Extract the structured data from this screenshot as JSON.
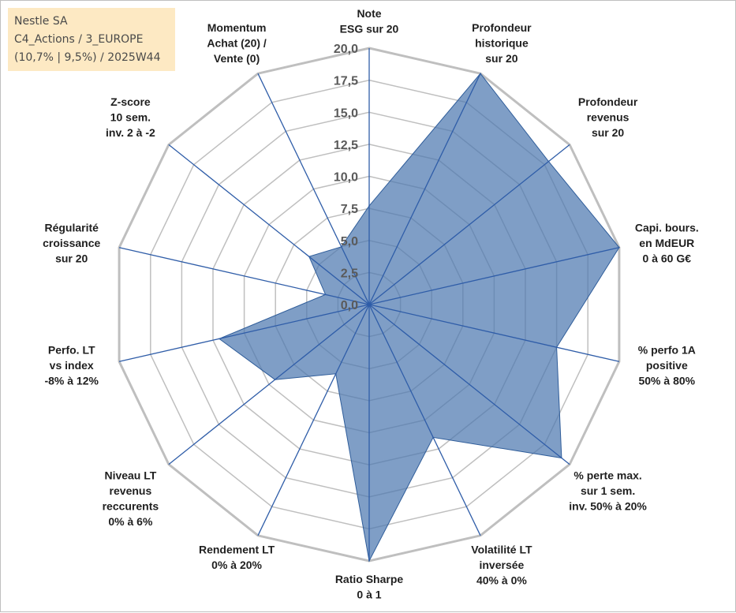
{
  "info": {
    "line1": "Nestle SA",
    "line2": "C4_Actions / 3_EUROPE",
    "line3": "(10,7% | 9,5%) / 2025W44"
  },
  "colors": {
    "fill": "#4e79b0",
    "fill_opacity": 0.72,
    "outline": "#2f5d9a",
    "spoke": "#2f5da8",
    "grid": "#bfbfbf",
    "info_bg": "#fde9c3"
  },
  "chart_data": {
    "type": "radar",
    "title": "",
    "rmin": 0,
    "rmax": 20,
    "ticks": [
      "0,0",
      "2,5",
      "5,0",
      "7,5",
      "10,0",
      "12,5",
      "15,0",
      "17,5",
      "20,0"
    ],
    "axes": [
      [
        "Note",
        "ESG sur 20"
      ],
      [
        "Profondeur",
        "historique",
        "sur 20"
      ],
      [
        "Profondeur",
        "revenus",
        "sur 20"
      ],
      [
        "Capi. bours.",
        "en MdEUR",
        "0 à 60 G€"
      ],
      [
        "% perfo 1A",
        "positive",
        "50% à 80%"
      ],
      [
        "% perte max.",
        "sur 1 sem.",
        "inv. 50% à 20%"
      ],
      [
        "Volatilité LT",
        "inversée",
        "40% à 0%"
      ],
      [
        "Ratio Sharpe",
        "0 à 1"
      ],
      [
        "Rendement LT",
        "0% à 20%"
      ],
      [
        "Niveau LT",
        "revenus",
        "reccurents",
        "0% à 6%"
      ],
      [
        "Perfo. LT",
        "vs index",
        "-8% à 12%"
      ],
      [
        "Régularité",
        "croissance",
        "sur 20"
      ],
      [
        "Z-score",
        "10 sem.",
        "inv. 2 à -2"
      ],
      [
        "Momentum",
        "Achat (20) /",
        "Vente (0)"
      ]
    ],
    "series": [
      {
        "name": "Nestle SA",
        "values": [
          7.7,
          20.0,
          17.9,
          20.0,
          15.0,
          19.2,
          11.5,
          20.0,
          6.0,
          9.4,
          12.0,
          3.5,
          6.0,
          5.0
        ]
      }
    ]
  }
}
